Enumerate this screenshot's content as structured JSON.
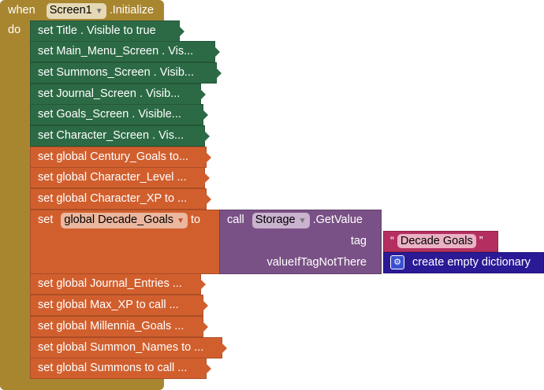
{
  "event": {
    "when": "when",
    "component": "Screen1",
    "method": ".Initialize",
    "do": "do"
  },
  "green_blocks": [
    {
      "label": "set  Title . Visible  to true"
    },
    {
      "label": "set  Main_Menu_Screen . Vis..."
    },
    {
      "label": "set  Summons_Screen . Visib..."
    },
    {
      "label": "set  Journal_Screen . Visib..."
    },
    {
      "label": "set  Goals_Screen . Visible..."
    },
    {
      "label": "set  Character_Screen . Vis..."
    }
  ],
  "orange_top": [
    {
      "label": "set global Century_Goals to..."
    },
    {
      "label": "set global Character_Level ..."
    },
    {
      "label": "set global Character_XP to ..."
    }
  ],
  "decade": {
    "set": "set",
    "var": "global Decade_Goals",
    "to": "to",
    "call": "call",
    "component": "Storage",
    "method": ".GetValue",
    "tag_label": "tag",
    "tag_value": "Decade Goals",
    "open_quote": "“",
    "close_quote": "”",
    "default_label": "valueIfTagNotThere",
    "default_value": "create empty dictionary"
  },
  "orange_bottom": [
    {
      "label": "set global Journal_Entries ..."
    },
    {
      "label": "set global Max_XP to call  ..."
    },
    {
      "label": "set global Millennia_Goals ..."
    },
    {
      "label": "set global Summon_Names to ..."
    },
    {
      "label": "set global Summons to call ..."
    }
  ],
  "colors": {
    "event": "#A8862F",
    "green": "#2C6A45",
    "orange": "#D15F2E",
    "purple": "#7A5186",
    "pink": "#B42F60",
    "navy": "#2A1A96"
  }
}
